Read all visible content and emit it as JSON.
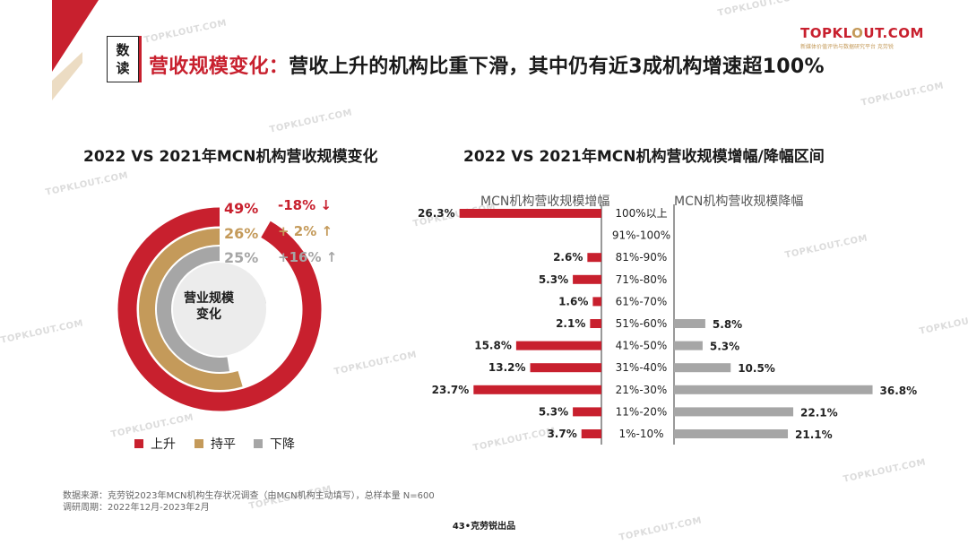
{
  "header": {
    "read_label_1": "数",
    "read_label_2": "读",
    "headline_accent": "营收规模变化：",
    "headline_rest": "营收上升的机构比重下滑，其中仍有近3成机构增速超100%"
  },
  "logo": {
    "main_prefix": "TOPKL",
    "main_mid": "O",
    "main_suffix": "UT.COM",
    "sub": "新媒体价值评估与数据研究平台 克劳锐"
  },
  "watermark": "TOPKLOUT.COM",
  "colors": {
    "red": "#c8202e",
    "gold": "#c49a5a",
    "gray": "#a6a6a6"
  },
  "chart_data": [
    {
      "type": "pie",
      "title": "2022 VS 2021年MCN机构营收规模变化",
      "center_label_1": "营业规模",
      "center_label_2": "变化",
      "slices": [
        {
          "name": "上升",
          "value": 49,
          "label": "49%",
          "change": "-18%",
          "direction": "down",
          "color": "#c8202e"
        },
        {
          "name": "持平",
          "value": 26,
          "label": "26%",
          "change": "+ 2%",
          "direction": "up",
          "color": "#c49a5a"
        },
        {
          "name": "下降",
          "value": 25,
          "label": "25%",
          "change": "+16%",
          "direction": "up",
          "color": "#a6a6a6"
        }
      ],
      "legend": [
        "上升",
        "持平",
        "下降"
      ],
      "legend_position": "bottom"
    },
    {
      "type": "bar",
      "orientation": "horizontal-diverging",
      "title": "2022 VS 2021年MCN机构营收规模增幅/降幅区间",
      "left_header": "MCN机构营收规模增幅",
      "right_header": "MCN机构营收规模降幅",
      "categories": [
        "100%以上",
        "91%-100%",
        "81%-90%",
        "71%-80%",
        "61%-70%",
        "51%-60%",
        "41%-50%",
        "31%-40%",
        "21%-30%",
        "11%-20%",
        "1%-10%"
      ],
      "series": [
        {
          "name": "MCN机构营收规模增幅",
          "values": [
            26.3,
            null,
            2.6,
            5.3,
            1.6,
            2.1,
            15.8,
            13.2,
            23.7,
            5.3,
            3.7
          ],
          "color": "#c8202e"
        },
        {
          "name": "MCN机构营收规模降幅",
          "values": [
            null,
            null,
            null,
            null,
            null,
            5.8,
            5.3,
            10.5,
            36.8,
            22.1,
            21.1
          ],
          "color": "#a6a6a6"
        }
      ],
      "value_suffix": "%"
    }
  ],
  "footer": {
    "source": "数据来源：克劳锐2023年MCN机构生存状况调查（由MCN机构主动填写），总样本量 N=600",
    "period": "调研周期：2022年12月-2023年2月",
    "page": "43•克劳锐出品"
  }
}
